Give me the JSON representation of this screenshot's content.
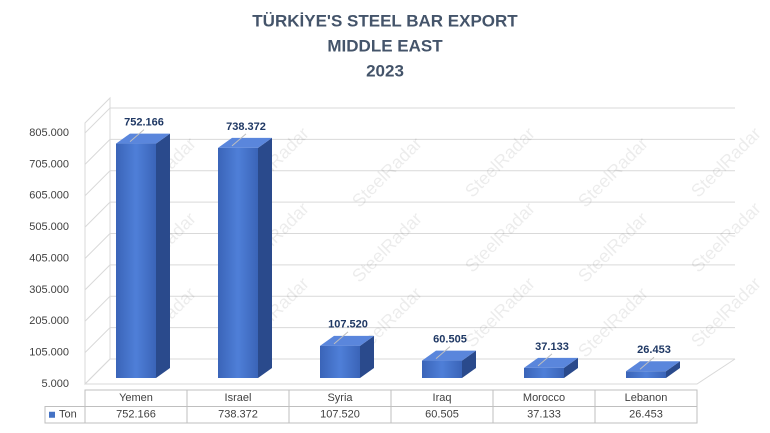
{
  "chart_data": {
    "type": "bar3d",
    "title": [
      "TÜRKİYE'S STEEL BAR EXPORT",
      "MIDDLE EAST",
      "2023"
    ],
    "watermark": "SteelRadar",
    "categories": [
      "Yemen",
      "Israel",
      "Syria",
      "Iraq",
      "Morocco",
      "Lebanon"
    ],
    "series": [
      {
        "name": "Ton",
        "color": "#4472c4",
        "values": [
          752166,
          738372,
          107520,
          60505,
          37133,
          26453
        ],
        "value_labels": [
          "752.166",
          "738.372",
          "107.520",
          "60.505",
          "37.133",
          "26.453"
        ]
      }
    ],
    "ylim": [
      5000,
      805000
    ],
    "yticks": [
      {
        "value": 5000,
        "label": "5.000"
      },
      {
        "value": 105000,
        "label": "105.000"
      },
      {
        "value": 205000,
        "label": "205.000"
      },
      {
        "value": 305000,
        "label": "305.000"
      },
      {
        "value": 405000,
        "label": "405.000"
      },
      {
        "value": 505000,
        "label": "505.000"
      },
      {
        "value": 605000,
        "label": "605.000"
      },
      {
        "value": 705000,
        "label": "705.000"
      },
      {
        "value": 805000,
        "label": "805.000"
      }
    ],
    "grid": true,
    "data_table": true
  }
}
